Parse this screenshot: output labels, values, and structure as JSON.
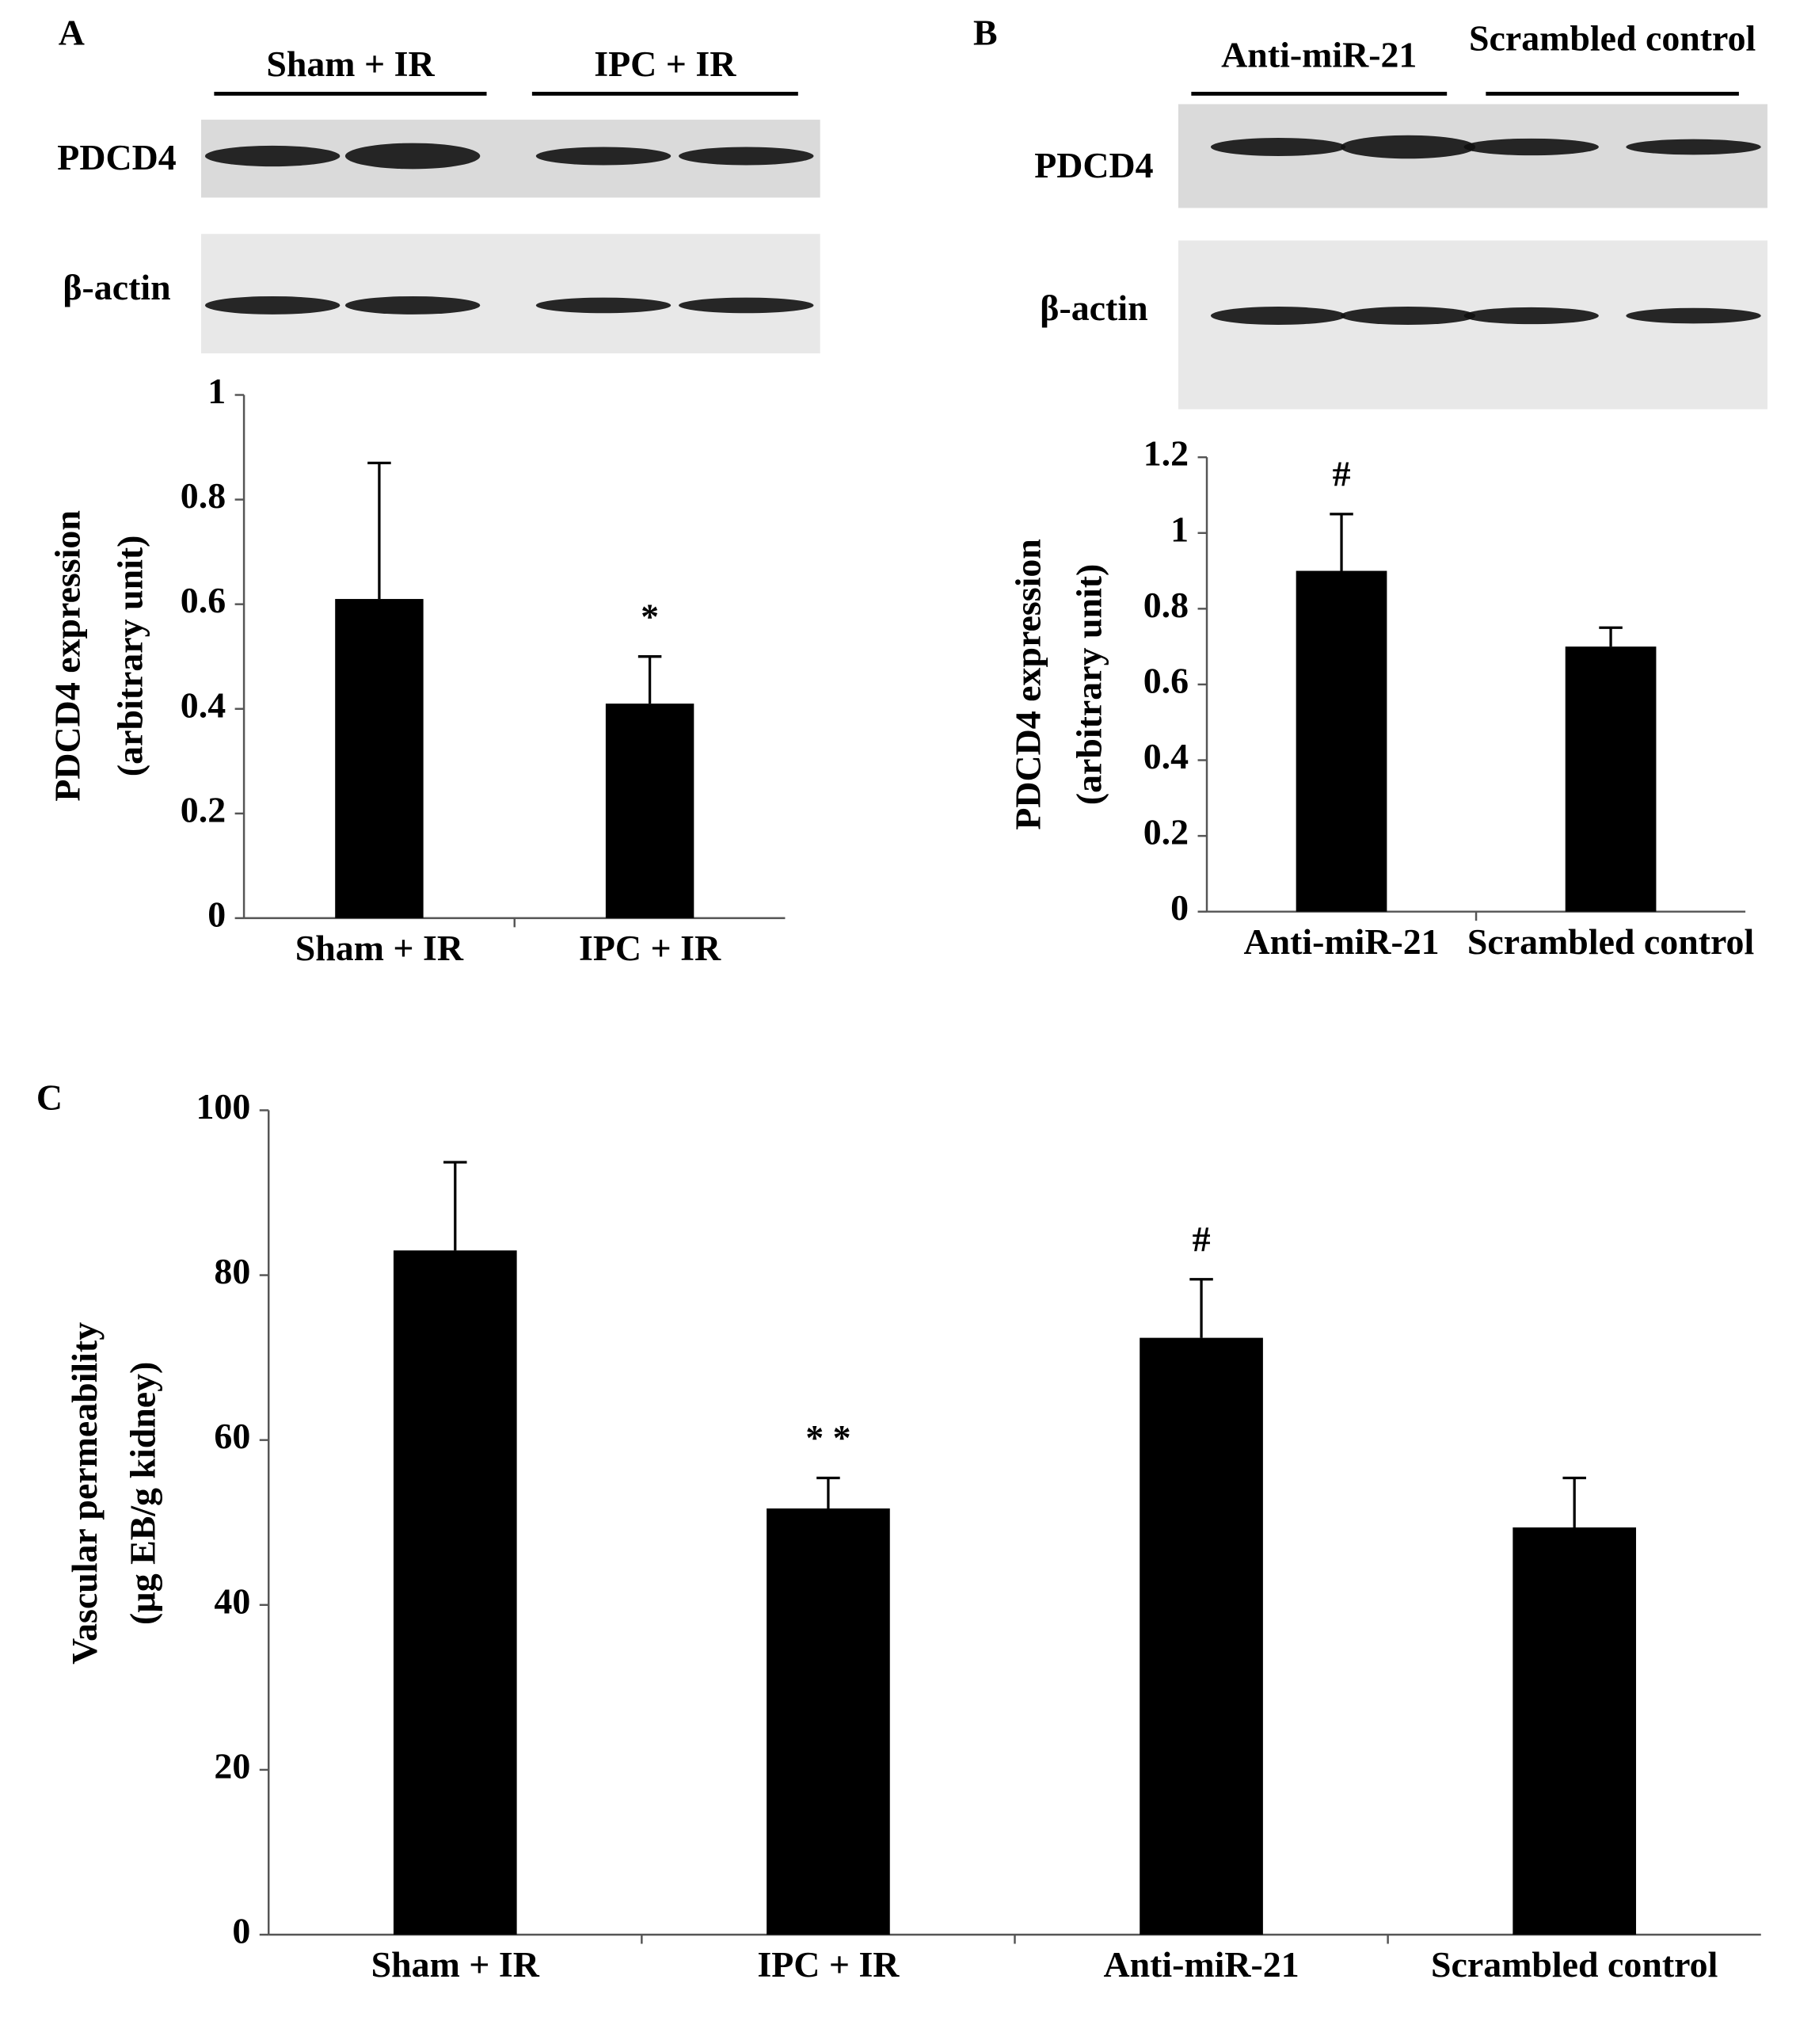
{
  "panel_labels": [
    "A",
    "B",
    "C"
  ],
  "blots": [
    {
      "groups": [
        "Sham + IR",
        "IPC + IR"
      ],
      "rows": [
        "PDCD4",
        "β-actin"
      ]
    },
    {
      "groups": [
        "Anti-miR-21",
        "Scrambled control"
      ],
      "rows": [
        "PDCD4",
        "β-actin"
      ]
    }
  ],
  "chart_data": [
    {
      "type": "bar",
      "ylabel": [
        "PDCD4 expression",
        "(arbitrary unit)"
      ],
      "categories": [
        "Sham + IR",
        "IPC + IR"
      ],
      "values": [
        0.61,
        0.41
      ],
      "errors": [
        0.26,
        0.09
      ],
      "annotations": [
        null,
        "*"
      ],
      "color": "#000000",
      "ylim": [
        0,
        1
      ],
      "yticks": [
        0,
        0.2,
        0.4,
        0.6,
        0.8,
        1
      ]
    },
    {
      "type": "bar",
      "ylabel": [
        "PDCD4 expression",
        "(arbitrary unit)"
      ],
      "categories": [
        "Anti-miR-21",
        "Scrambled control"
      ],
      "values": [
        0.9,
        0.7
      ],
      "errors": [
        0.15,
        0.05
      ],
      "annotations": [
        "#",
        null
      ],
      "color": "#000000",
      "ylim": [
        0,
        1.2
      ],
      "yticks": [
        0,
        0.2,
        0.4,
        0.6,
        0.8,
        1,
        1.2
      ]
    },
    {
      "type": "bar",
      "ylabel": [
        "Vascular permeability",
        "(µg EB/g kidney)"
      ],
      "categories": [
        "Sham + IR",
        "IPC + IR",
        "Anti-miR-21",
        "Scrambled control"
      ],
      "values": [
        83,
        51.7,
        72.4,
        49.4
      ],
      "errors": [
        10.7,
        3.7,
        7.1,
        6
      ],
      "annotations": [
        null,
        "* *",
        "#",
        null
      ],
      "color": "#000000",
      "ylim": [
        0,
        100
      ],
      "yticks": [
        0,
        20,
        40,
        60,
        80,
        100
      ]
    }
  ]
}
